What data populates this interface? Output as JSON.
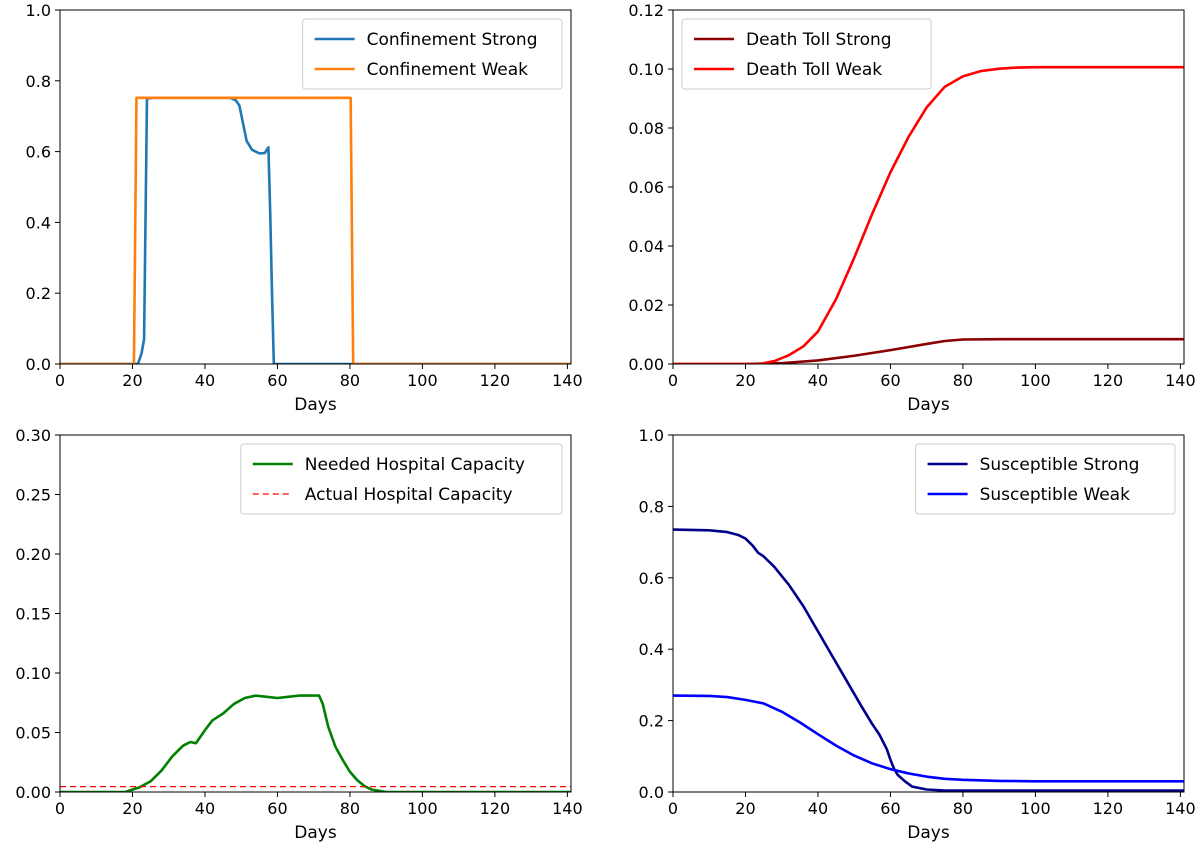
{
  "chart_data": [
    {
      "type": "line",
      "title": "",
      "xlabel": "Days",
      "ylabel": "",
      "xlim": [
        0,
        141
      ],
      "ylim": [
        0,
        1.0
      ],
      "xticks": [
        0,
        20,
        40,
        60,
        80,
        100,
        120,
        140
      ],
      "yticks": [
        "0.0",
        "0.2",
        "0.4",
        "0.6",
        "0.8",
        "1.0"
      ],
      "legend_position": "top-right",
      "series": [
        {
          "name": "Confinement Strong",
          "color": "#1f77b4",
          "dashed": false,
          "x": [
            0,
            21.5,
            22.5,
            23.2,
            24,
            26,
            30,
            40,
            47,
            48.5,
            49.5,
            50.5,
            51.5,
            53,
            55,
            56.5,
            57.5,
            58,
            58.5,
            59,
            61,
            80,
            141
          ],
          "y": [
            0,
            0,
            0.03,
            0.07,
            0.75,
            0.752,
            0.752,
            0.752,
            0.752,
            0.745,
            0.73,
            0.68,
            0.63,
            0.605,
            0.595,
            0.596,
            0.612,
            0.43,
            0.2,
            0,
            0,
            0,
            0
          ]
        },
        {
          "name": "Confinement Weak",
          "color": "#ff7f0e",
          "dashed": false,
          "x": [
            0,
            20.4,
            21.1,
            80.2,
            80.9,
            141
          ],
          "y": [
            0,
            0,
            0.752,
            0.752,
            0,
            0
          ]
        }
      ]
    },
    {
      "type": "line",
      "title": "",
      "xlabel": "Days",
      "ylabel": "",
      "xlim": [
        0,
        141
      ],
      "ylim": [
        0,
        0.12
      ],
      "xticks": [
        0,
        20,
        40,
        60,
        80,
        100,
        120,
        140
      ],
      "yticks": [
        "0.00",
        "0.02",
        "0.04",
        "0.06",
        "0.08",
        "0.10",
        "0.12"
      ],
      "legend_position": "top-left",
      "series": [
        {
          "name": "Death Toll Strong",
          "color": "#8b0000",
          "dashed": false,
          "x": [
            0,
            20,
            30,
            40,
            50,
            60,
            70,
            75,
            80,
            90,
            100,
            141
          ],
          "y": [
            0,
            0,
            0.0003,
            0.0012,
            0.0028,
            0.0047,
            0.0068,
            0.0078,
            0.0083,
            0.0084,
            0.0084,
            0.0084
          ]
        },
        {
          "name": "Death Toll Weak",
          "color": "#ff0000",
          "dashed": false,
          "x": [
            0,
            24,
            28,
            32,
            36,
            40,
            45,
            50,
            55,
            60,
            65,
            70,
            75,
            80,
            85,
            90,
            95,
            100,
            141
          ],
          "y": [
            0,
            0,
            0.001,
            0.003,
            0.006,
            0.011,
            0.022,
            0.036,
            0.051,
            0.065,
            0.077,
            0.087,
            0.094,
            0.0975,
            0.0993,
            0.1001,
            0.1005,
            0.1006,
            0.1006
          ]
        }
      ]
    },
    {
      "type": "line",
      "title": "",
      "xlabel": "Days",
      "ylabel": "",
      "xlim": [
        0,
        141
      ],
      "ylim": [
        0,
        0.3
      ],
      "xticks": [
        0,
        20,
        40,
        60,
        80,
        100,
        120,
        140
      ],
      "yticks": [
        "0.00",
        "0.05",
        "0.10",
        "0.15",
        "0.20",
        "0.25",
        "0.30"
      ],
      "legend_position": "top-right",
      "series": [
        {
          "name": "Needed Hospital Capacity",
          "color": "#008000",
          "dashed": false,
          "x": [
            0,
            18,
            22,
            25,
            28,
            31,
            34,
            36,
            37.5,
            40,
            42,
            45,
            48,
            51,
            54,
            57,
            60,
            63,
            66,
            69,
            71.5,
            72.5,
            74,
            76,
            78,
            80,
            82,
            84,
            86,
            88,
            90,
            141
          ],
          "y": [
            0,
            0,
            0.004,
            0.009,
            0.018,
            0.03,
            0.039,
            0.042,
            0.041,
            0.052,
            0.06,
            0.066,
            0.074,
            0.079,
            0.081,
            0.08,
            0.079,
            0.08,
            0.081,
            0.081,
            0.081,
            0.074,
            0.055,
            0.038,
            0.027,
            0.017,
            0.01,
            0.005,
            0.002,
            0.001,
            0,
            0
          ]
        },
        {
          "name": "Actual Hospital Capacity",
          "color": "#ff0000",
          "dashed": true,
          "x": [
            0,
            141
          ],
          "y": [
            0.0045,
            0.0045
          ]
        }
      ]
    },
    {
      "type": "line",
      "title": "",
      "xlabel": "Days",
      "ylabel": "",
      "xlim": [
        0,
        141
      ],
      "ylim": [
        0,
        1.0
      ],
      "xticks": [
        0,
        20,
        40,
        60,
        80,
        100,
        120,
        140
      ],
      "yticks": [
        "0.0",
        "0.2",
        "0.4",
        "0.6",
        "0.8",
        "1.0"
      ],
      "legend_position": "top-right",
      "series": [
        {
          "name": "Susceptible Strong",
          "color": "#00008b",
          "dashed": false,
          "x": [
            0,
            10,
            15,
            18,
            20,
            22,
            23.5,
            25,
            28,
            32,
            36,
            40,
            44,
            48,
            52,
            55,
            57,
            59,
            60,
            61,
            62,
            64,
            66,
            70,
            75,
            80,
            141
          ],
          "y": [
            0.735,
            0.733,
            0.728,
            0.72,
            0.71,
            0.69,
            0.67,
            0.66,
            0.63,
            0.58,
            0.52,
            0.45,
            0.38,
            0.31,
            0.24,
            0.19,
            0.16,
            0.12,
            0.09,
            0.065,
            0.048,
            0.03,
            0.015,
            0.007,
            0.004,
            0.004,
            0.004
          ]
        },
        {
          "name": "Susceptible Weak",
          "color": "#0000ff",
          "dashed": false,
          "x": [
            0,
            10,
            15,
            20,
            25,
            30,
            35,
            40,
            45,
            50,
            55,
            60,
            65,
            70,
            75,
            80,
            90,
            100,
            141
          ],
          "y": [
            0.27,
            0.269,
            0.266,
            0.258,
            0.248,
            0.225,
            0.195,
            0.162,
            0.13,
            0.102,
            0.08,
            0.064,
            0.052,
            0.043,
            0.037,
            0.034,
            0.031,
            0.03,
            0.03
          ]
        }
      ]
    }
  ]
}
